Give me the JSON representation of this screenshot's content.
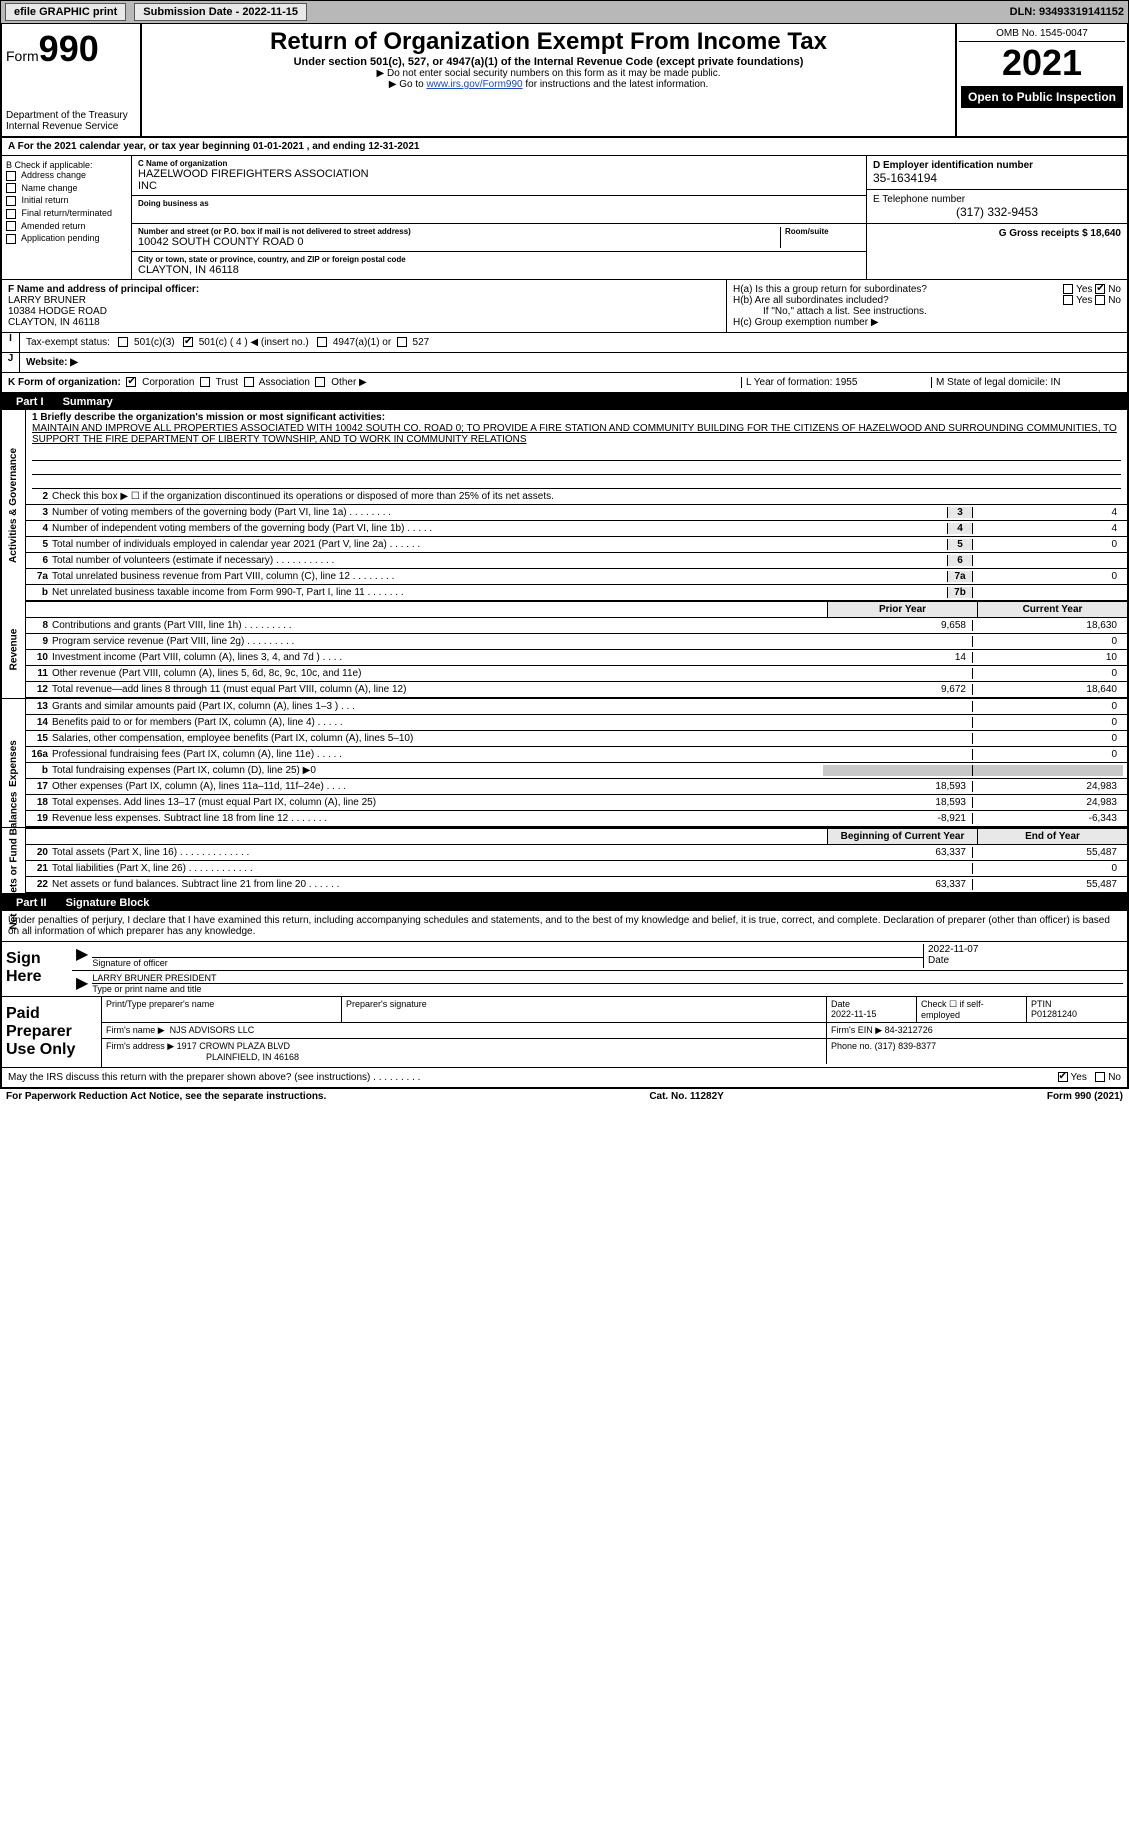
{
  "topbar": {
    "efile_label": "efile GRAPHIC print",
    "submission_label": "Submission Date - 2022-11-15",
    "dln_label": "DLN: 93493319141152"
  },
  "header": {
    "form_prefix": "Form",
    "form_number": "990",
    "dept1": "Department of the Treasury",
    "dept2": "Internal Revenue Service",
    "title": "Return of Organization Exempt From Income Tax",
    "subtitle": "Under section 501(c), 527, or 4947(a)(1) of the Internal Revenue Code (except private foundations)",
    "directive1": "▶ Do not enter social security numbers on this form as it may be made public.",
    "directive2_pre": "▶ Go to ",
    "directive2_link": "www.irs.gov/Form990",
    "directive2_post": " for instructions and the latest information.",
    "omb": "OMB No. 1545-0047",
    "year": "2021",
    "opentag": "Open to Public Inspection"
  },
  "bandA": {
    "text": "A For the 2021 calendar year, or tax year beginning 01-01-2021    , and ending 12-31-2021"
  },
  "boxB": {
    "label": "B Check if applicable:",
    "opts": [
      "Address change",
      "Name change",
      "Initial return",
      "Final return/terminated",
      "Amended return",
      "Application pending"
    ]
  },
  "boxC": {
    "nameLabel": "C Name of organization",
    "name1": "HAZELWOOD FIREFIGHTERS ASSOCIATION",
    "name2": "INC",
    "dbaLabel": "Doing business as",
    "addrLabel": "Number and street (or P.O. box if mail is not delivered to street address)",
    "roomLabel": "Room/suite",
    "addr": "10042 SOUTH COUNTY ROAD 0",
    "cityLabel": "City or town, state or province, country, and ZIP or foreign postal code",
    "city": "CLAYTON, IN  46118"
  },
  "boxD": {
    "einLabel": "D Employer identification number",
    "ein": "35-1634194",
    "telLabel": "E Telephone number",
    "tel": "(317) 332-9453",
    "grossLabel": "G Gross receipts $ 18,640"
  },
  "boxF": {
    "label": "F  Name and address of principal officer:",
    "name": "LARRY BRUNER",
    "addr1": "10384 HODGE ROAD",
    "addr2": "CLAYTON, IN  46118"
  },
  "boxH": {
    "ha": "H(a)  Is this a group return for subordinates?",
    "hb": "H(b)  Are all subordinates included?",
    "hbnote": "If \"No,\" attach a list. See instructions.",
    "hc": "H(c)  Group exemption number ▶",
    "yes": "Yes",
    "no": "No"
  },
  "taxI": {
    "label": "Tax-exempt status:",
    "o1": "501(c)(3)",
    "o2": "501(c) ( 4 ) ◀ (insert no.)",
    "o3": "4947(a)(1) or",
    "o4": "527"
  },
  "rowJ": {
    "label": "Website: ▶"
  },
  "rowK": {
    "label": "K Form of organization:",
    "corp": "Corporation",
    "trust": "Trust",
    "assoc": "Association",
    "other": "Other ▶",
    "lLabel": "L Year of formation: 1955",
    "mLabel": "M State of legal domicile: IN"
  },
  "partI": {
    "partno": "Part I",
    "partlabel": "Summary",
    "line1label": "1 Briefly describe the organization's mission or most significant activities:",
    "mission": "MAINTAIN AND IMPROVE ALL PROPERTIES ASSOCIATED WITH 10042 SOUTH CO. ROAD 0; TO PROVIDE A FIRE STATION AND COMMUNITY BUILDING FOR THE CITIZENS OF HAZELWOOD AND SURROUNDING COMMUNITIES, TO SUPPORT THE FIRE DEPARTMENT OF LIBERTY TOWNSHIP, AND TO WORK IN COMMUNITY RELATIONS",
    "line2": "Check this box ▶ ☐  if the organization discontinued its operations or disposed of more than 25% of its net assets.",
    "side_gov": "Activities & Governance",
    "side_rev": "Revenue",
    "side_exp": "Expenses",
    "side_net": "Net Assets or Fund Balances",
    "rows_gov": [
      {
        "n": "3",
        "d": "Number of voting members of the governing body (Part VI, line 1a)  .    .    .    .    .    .    .    .",
        "ln": "3",
        "v": "4"
      },
      {
        "n": "4",
        "d": "Number of independent voting members of the governing body (Part VI, line 1b)   .    .    .    .    .",
        "ln": "4",
        "v": "4"
      },
      {
        "n": "5",
        "d": "Total number of individuals employed in calendar year 2021 (Part V, line 2a)  .    .    .    .    .    .",
        "ln": "5",
        "v": "0"
      },
      {
        "n": "6",
        "d": "Total number of volunteers (estimate if necessary)    .    .    .    .    .    .    .    .    .    .    .",
        "ln": "6",
        "v": ""
      },
      {
        "n": "7a",
        "d": "Total unrelated business revenue from Part VIII, column (C), line 12   .    .    .    .    .    .    .    .",
        "ln": "7a",
        "v": "0"
      },
      {
        "n": "b",
        "d": "Net unrelated business taxable income from Form 990-T, Part I, line 11   .    .    .    .    .    .    .",
        "ln": "7b",
        "v": ""
      }
    ],
    "col_prev": "Prior Year",
    "col_curr": "Current Year",
    "rows_rev": [
      {
        "n": "8",
        "d": "Contributions and grants (Part VIII, line 1h)   .    .    .    .    .    .    .    .    .",
        "p": "9,658",
        "c": "18,630"
      },
      {
        "n": "9",
        "d": "Program service revenue (Part VIII, line 2g)   .    .    .    .    .    .    .    .    .",
        "p": "",
        "c": "0"
      },
      {
        "n": "10",
        "d": "Investment income (Part VIII, column (A), lines 3, 4, and 7d )   .    .    .    .",
        "p": "14",
        "c": "10"
      },
      {
        "n": "11",
        "d": "Other revenue (Part VIII, column (A), lines 5, 6d, 8c, 9c, 10c, and 11e)",
        "p": "",
        "c": "0"
      },
      {
        "n": "12",
        "d": "Total revenue—add lines 8 through 11 (must equal Part VIII, column (A), line 12)",
        "p": "9,672",
        "c": "18,640"
      }
    ],
    "rows_exp": [
      {
        "n": "13",
        "d": "Grants and similar amounts paid (Part IX, column (A), lines 1–3 )  .    .    .",
        "p": "",
        "c": "0"
      },
      {
        "n": "14",
        "d": "Benefits paid to or for members (Part IX, column (A), line 4)  .    .    .    .    .",
        "p": "",
        "c": "0"
      },
      {
        "n": "15",
        "d": "Salaries, other compensation, employee benefits (Part IX, column (A), lines 5–10)",
        "p": "",
        "c": "0"
      },
      {
        "n": "16a",
        "d": "Professional fundraising fees (Part IX, column (A), line 11e)   .    .    .    .    .",
        "p": "",
        "c": "0"
      },
      {
        "n": "b",
        "d": "Total fundraising expenses (Part IX, column (D), line 25) ▶0",
        "p": "SHADE",
        "c": "SHADE"
      },
      {
        "n": "17",
        "d": "Other expenses (Part IX, column (A), lines 11a–11d, 11f–24e)   .    .    .    .",
        "p": "18,593",
        "c": "24,983"
      },
      {
        "n": "18",
        "d": "Total expenses. Add lines 13–17 (must equal Part IX, column (A), line 25)",
        "p": "18,593",
        "c": "24,983"
      },
      {
        "n": "19",
        "d": "Revenue less expenses. Subtract line 18 from line 12  .    .    .    .    .    .    .",
        "p": "-8,921",
        "c": "-6,343"
      }
    ],
    "col_begin": "Beginning of Current Year",
    "col_end": "End of Year",
    "rows_net": [
      {
        "n": "20",
        "d": "Total assets (Part X, line 16)  .    .    .    .    .    .    .    .    .    .    .    .    .",
        "p": "63,337",
        "c": "55,487"
      },
      {
        "n": "21",
        "d": "Total liabilities (Part X, line 26)   .    .    .    .    .    .    .    .    .    .    .    .",
        "p": "",
        "c": "0"
      },
      {
        "n": "22",
        "d": "Net assets or fund balances. Subtract line 21 from line 20  .    .    .    .    .    .",
        "p": "63,337",
        "c": "55,487"
      }
    ]
  },
  "partII": {
    "partno": "Part II",
    "partlabel": "Signature Block",
    "decl": "Under penalties of perjury, I declare that I have examined this return, including accompanying schedules and statements, and to the best of my knowledge and belief, it is true, correct, and complete. Declaration of preparer (other than officer) is based on all information of which preparer has any knowledge."
  },
  "sign": {
    "label": "Sign Here",
    "sigofficer": "Signature of officer",
    "date": "2022-11-07",
    "datelabel": "Date",
    "name": "LARRY BRUNER PRESIDENT",
    "namelabel": "Type or print name and title"
  },
  "paid": {
    "label": "Paid Preparer Use Only",
    "h_name": "Print/Type preparer's name",
    "h_sig": "Preparer's signature",
    "h_date": "Date",
    "h_check": "Check ☐ if self-employed",
    "h_ptin": "PTIN",
    "date": "2022-11-15",
    "ptin": "P01281240",
    "firmname_l": "Firm's name    ▶",
    "firmname": "NJS ADVISORS LLC",
    "firmein_l": "Firm's EIN ▶",
    "firmein": "84-3212726",
    "firmaddr_l": "Firm's address ▶",
    "firmaddr1": "1917 CROWN PLAZA BLVD",
    "firmaddr2": "PLAINFIELD, IN  46168",
    "phone_l": "Phone no.",
    "phone": "(317) 839-8377"
  },
  "discuss": {
    "text": "May the IRS discuss this return with the preparer shown above? (see instructions)   .    .    .    .    .    .    .    .    .",
    "yes": "Yes",
    "no": "No"
  },
  "footer": {
    "left": "For Paperwork Reduction Act Notice, see the separate instructions.",
    "mid": "Cat. No. 11282Y",
    "right_pre": "Form ",
    "right_form": "990",
    "right_post": " (2021)"
  }
}
